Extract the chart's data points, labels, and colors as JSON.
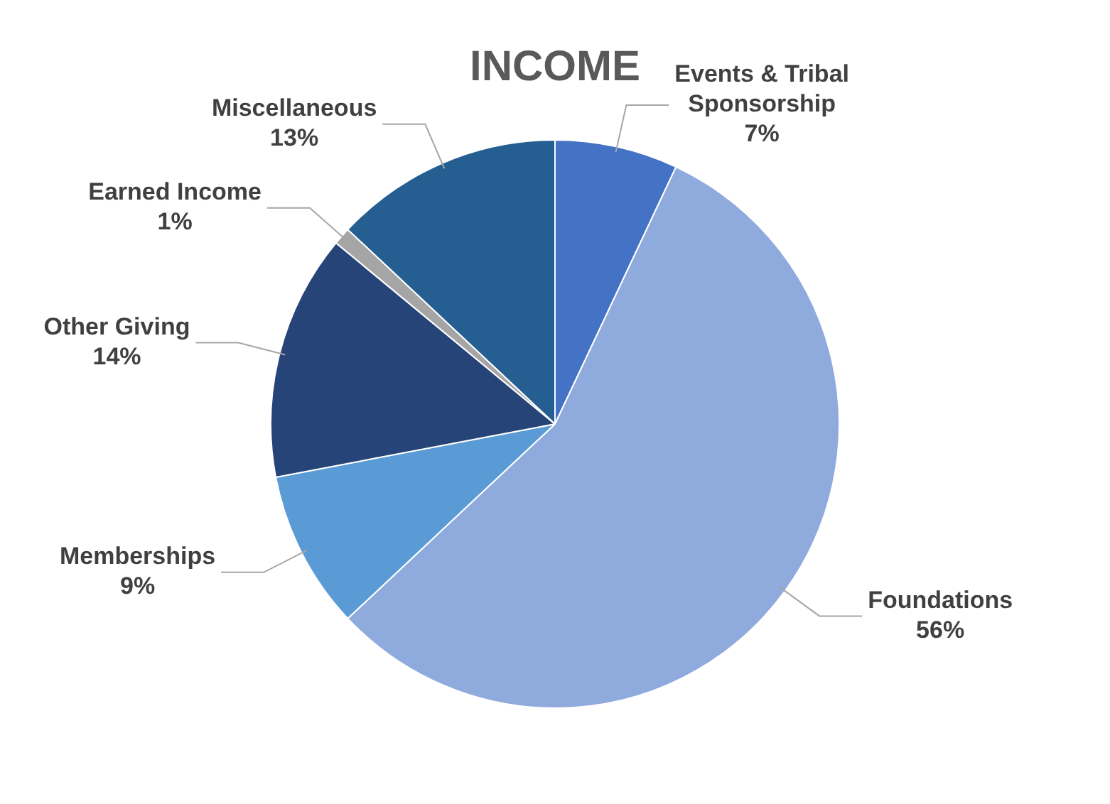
{
  "chart_data": {
    "type": "pie",
    "title": "INCOME",
    "categories": [
      "Events & Tribal Sponsorship",
      "Foundations",
      "Memberships",
      "Other Giving",
      "Earned Income",
      "Miscellaneous"
    ],
    "values": [
      7,
      56,
      9,
      14,
      1,
      13
    ],
    "value_labels": [
      "7%",
      "56%",
      "9%",
      "14%",
      "1%",
      "13%"
    ],
    "colors": [
      "#4472c4",
      "#8faadc",
      "#5b9bd5",
      "#264478",
      "#a5a5a5",
      "#255e91"
    ],
    "legend": false
  }
}
